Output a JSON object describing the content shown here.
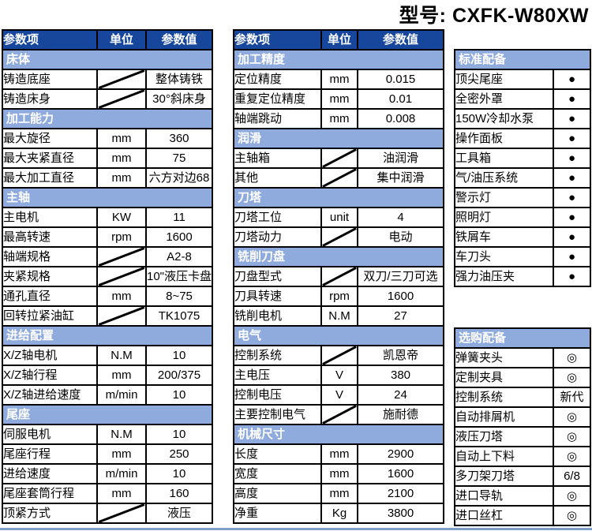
{
  "title": "型号: CXFK-W80XW",
  "colors": {
    "header_bg": "#17479d",
    "section_bg": "#8faadc",
    "border": "#000000",
    "bottom_line": "#7d9fc6"
  },
  "symbols": {
    "standard_mark": "●",
    "optional_mark": "◎"
  },
  "left_table": {
    "header": {
      "param": "参数项",
      "unit": "单位",
      "value": "参数值"
    },
    "rows": [
      {
        "section": "床体"
      },
      {
        "param": "铸造底座",
        "unit": null,
        "value": "整体铸铁"
      },
      {
        "param": "铸造床身",
        "unit": null,
        "value": "30°斜床身"
      },
      {
        "section": "加工能力"
      },
      {
        "param": "最大旋径",
        "unit": "mm",
        "value": "360"
      },
      {
        "param": "最大夹紧直径",
        "unit": "mm",
        "value": "75"
      },
      {
        "param": "最大加工直径",
        "unit": "mm",
        "value": "六方对边68"
      },
      {
        "section": "主轴"
      },
      {
        "param": "主电机",
        "unit": "KW",
        "value": "11"
      },
      {
        "param": "最高转速",
        "unit": "rpm",
        "value": "1600"
      },
      {
        "param": "轴端规格",
        "unit": null,
        "value": "A2-8"
      },
      {
        "param": "夹紧规格",
        "unit": null,
        "value": "10\"液压卡盘"
      },
      {
        "param": "通孔直径",
        "unit": "mm",
        "value": "8~75"
      },
      {
        "param": "回转拉紧油缸",
        "unit": null,
        "value": "TK1075"
      },
      {
        "section": "进给配置"
      },
      {
        "param": "X/Z轴电机",
        "unit": "N.M",
        "value": "10"
      },
      {
        "param": "X/Z轴行程",
        "unit": "mm",
        "value": "200/375"
      },
      {
        "param": "X/Z轴进给速度",
        "unit": "m/min",
        "value": "10"
      },
      {
        "section": "尾座"
      },
      {
        "param": "伺服电机",
        "unit": "N.M",
        "value": "10"
      },
      {
        "param": "尾座行程",
        "unit": "mm",
        "value": "250"
      },
      {
        "param": "进给速度",
        "unit": "m/min",
        "value": "10"
      },
      {
        "param": "尾座套筒行程",
        "unit": "mm",
        "value": "160"
      },
      {
        "param": "顶紧方式",
        "unit": null,
        "value": "液压"
      }
    ]
  },
  "middle_table": {
    "header": {
      "param": "参数项",
      "unit": "单位",
      "value": "参数值"
    },
    "rows": [
      {
        "section": "加工精度"
      },
      {
        "param": "定位精度",
        "unit": "mm",
        "value": "0.015"
      },
      {
        "param": "重复定位精度",
        "unit": "mm",
        "value": "0.01"
      },
      {
        "param": "轴端跳动",
        "unit": "mm",
        "value": "0.008"
      },
      {
        "section": "润滑"
      },
      {
        "param": "主轴箱",
        "unit": null,
        "value": "油润滑"
      },
      {
        "param": "其他",
        "unit": null,
        "value": "集中润滑"
      },
      {
        "section": "刀塔"
      },
      {
        "param": "刀塔工位",
        "unit": "unit",
        "value": "4"
      },
      {
        "param": "刀塔动力",
        "unit": null,
        "value": "电动"
      },
      {
        "section": "铣削刀盘"
      },
      {
        "param": "刀盘型式",
        "unit": null,
        "value": "双刀/三刀可选"
      },
      {
        "param": "刀具转速",
        "unit": "rpm",
        "value": "1600"
      },
      {
        "param": "铣削电机",
        "unit": "N.M",
        "value": "27"
      },
      {
        "section": "电气"
      },
      {
        "param": "控制系统",
        "unit": null,
        "value": "凯恩帝"
      },
      {
        "param": "主电压",
        "unit": "V",
        "value": "380"
      },
      {
        "param": "控制电压",
        "unit": "V",
        "value": "24"
      },
      {
        "param": "主要控制电气",
        "unit": null,
        "value": "施耐德"
      },
      {
        "section": "机械尺寸"
      },
      {
        "param": "长度",
        "unit": "mm",
        "value": "2900"
      },
      {
        "param": "宽度",
        "unit": "mm",
        "value": "1600"
      },
      {
        "param": "高度",
        "unit": "mm",
        "value": "2100"
      },
      {
        "param": "净重",
        "unit": "Kg",
        "value": "3800"
      }
    ]
  },
  "standard_table": {
    "section": "标准配备",
    "rows": [
      {
        "item": "顶尖尾座",
        "value": "●"
      },
      {
        "item": "全密外罩",
        "value": "●"
      },
      {
        "item": "150W冷却水泵",
        "value": "●"
      },
      {
        "item": "操作面板",
        "value": "●"
      },
      {
        "item": "工具箱",
        "value": "●"
      },
      {
        "item": "气/油压系统",
        "value": "●"
      },
      {
        "item": "警示灯",
        "value": "●"
      },
      {
        "item": "照明灯",
        "value": "●"
      },
      {
        "item": "铁屑车",
        "value": "●"
      },
      {
        "item": "车刀头",
        "value": "●"
      },
      {
        "item": "强力油压夹",
        "value": "●"
      }
    ]
  },
  "optional_table": {
    "section": "选购配备",
    "rows": [
      {
        "item": "弹簧夹头",
        "value": "◎"
      },
      {
        "item": "定制夹具",
        "value": "◎"
      },
      {
        "item": "控制系统",
        "value": "新代"
      },
      {
        "item": "自动排屑机",
        "value": "◎"
      },
      {
        "item": "液压刀塔",
        "value": "◎"
      },
      {
        "item": "自动上下料",
        "value": "◎"
      },
      {
        "item": "多刀架刀塔",
        "value": "6/8"
      },
      {
        "item": "进口导轨",
        "value": "◎"
      },
      {
        "item": "进口丝杠",
        "value": "◎"
      }
    ]
  }
}
